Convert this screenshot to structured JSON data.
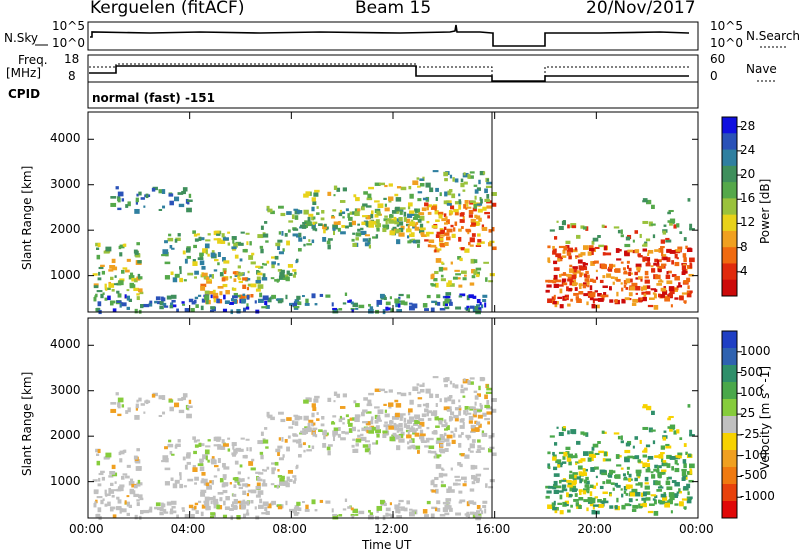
{
  "header": {
    "station": "Kerguelen (fitACF)",
    "beam": "Beam 15",
    "date": "20/Nov/2017"
  },
  "strips": {
    "nsky_label": "N.Sky",
    "nsky_ticks": [
      "10^5",
      "10^0"
    ],
    "nsearch_label": "N.Search",
    "nsearch_ticks": [
      "10^5",
      "10^0"
    ],
    "freq_label_1": "Freq.",
    "freq_label_2": "[MHz]",
    "freq_ticks": [
      "18",
      "8"
    ],
    "nave_label": "Nave",
    "nave_ticks": [
      "60",
      "0"
    ],
    "cpid_label": "CPID",
    "cpid_value": "normal (fast) -151"
  },
  "chart_data": [
    {
      "type": "heatmap",
      "title": "",
      "ylabel": "Slant Range [km]",
      "xlabel": "",
      "ylim": [
        200,
        4600
      ],
      "yticks": [
        "1000",
        "2000",
        "3000",
        "4000"
      ],
      "xticks": [
        "00:00",
        "04:00",
        "08:00",
        "12:00",
        "16:00",
        "20:00",
        "00:00"
      ],
      "colorbar": {
        "label": "Power [dB]",
        "ticks": [
          "4",
          "8",
          "12",
          "16",
          "20",
          "24",
          "28"
        ],
        "colors": [
          "#1010e0",
          "#2a52b8",
          "#2f7fa0",
          "#3f8f5c",
          "#55a84a",
          "#9ac23c",
          "#e8d21a",
          "#f0a020",
          "#f06a10",
          "#e02a0c",
          "#cc0a0a"
        ]
      }
    },
    {
      "type": "heatmap",
      "title": "",
      "ylabel": "Slant Range [km]",
      "xlabel": "Time UT",
      "ylim": [
        200,
        4600
      ],
      "yticks": [
        "1000",
        "2000",
        "3000",
        "4000"
      ],
      "xticks": [
        "00:00",
        "04:00",
        "08:00",
        "12:00",
        "16:00",
        "20:00",
        "00:00"
      ],
      "colorbar": {
        "label": "Velocity [m s^-1]",
        "ticks": [
          "1000",
          "500",
          "100",
          "25",
          "-25",
          "-100",
          "-500",
          "-1000"
        ],
        "colors": [
          "#1f3fc4",
          "#2f62b0",
          "#2f8f6a",
          "#4aa84a",
          "#86cc3c",
          "#c0c0c0",
          "#f7d200",
          "#f0a020",
          "#f07a10",
          "#e8420c",
          "#e00808"
        ]
      }
    }
  ]
}
